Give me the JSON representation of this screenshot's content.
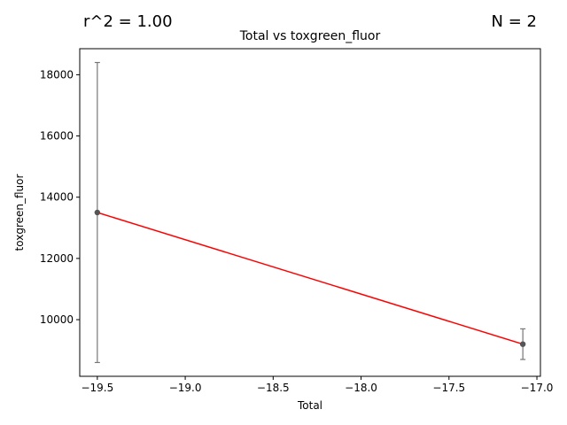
{
  "chart_data": {
    "type": "scatter",
    "title": "Total vs toxgreen_fluor",
    "xlabel": "Total",
    "ylabel": "toxgreen_fluor",
    "r2_label": "r^2 = 1.00",
    "n_label": "N = 2",
    "xlim": [
      -19.6,
      -16.98
    ],
    "ylim": [
      8150,
      18850
    ],
    "xticks": [
      -19.5,
      -19.0,
      -18.5,
      -18.0,
      -17.5,
      -17.0
    ],
    "xtick_labels": [
      "−19.5",
      "−19.0",
      "−18.5",
      "−18.0",
      "−17.5",
      "−17.0"
    ],
    "yticks": [
      10000,
      12000,
      14000,
      16000,
      18000
    ],
    "ytick_labels": [
      "10000",
      "12000",
      "14000",
      "16000",
      "18000"
    ],
    "points": [
      {
        "x": -19.5,
        "y": 13500,
        "err_low": 8600,
        "err_high": 18400
      },
      {
        "x": -17.08,
        "y": 9200,
        "err_low": 8700,
        "err_high": 9700
      }
    ],
    "fit_line": {
      "x": [
        -19.5,
        -17.08
      ],
      "y": [
        13500,
        9200
      ],
      "color": "#ff0000"
    },
    "point_color": "#555555",
    "errorbar_color": "#777777",
    "grid": false
  }
}
